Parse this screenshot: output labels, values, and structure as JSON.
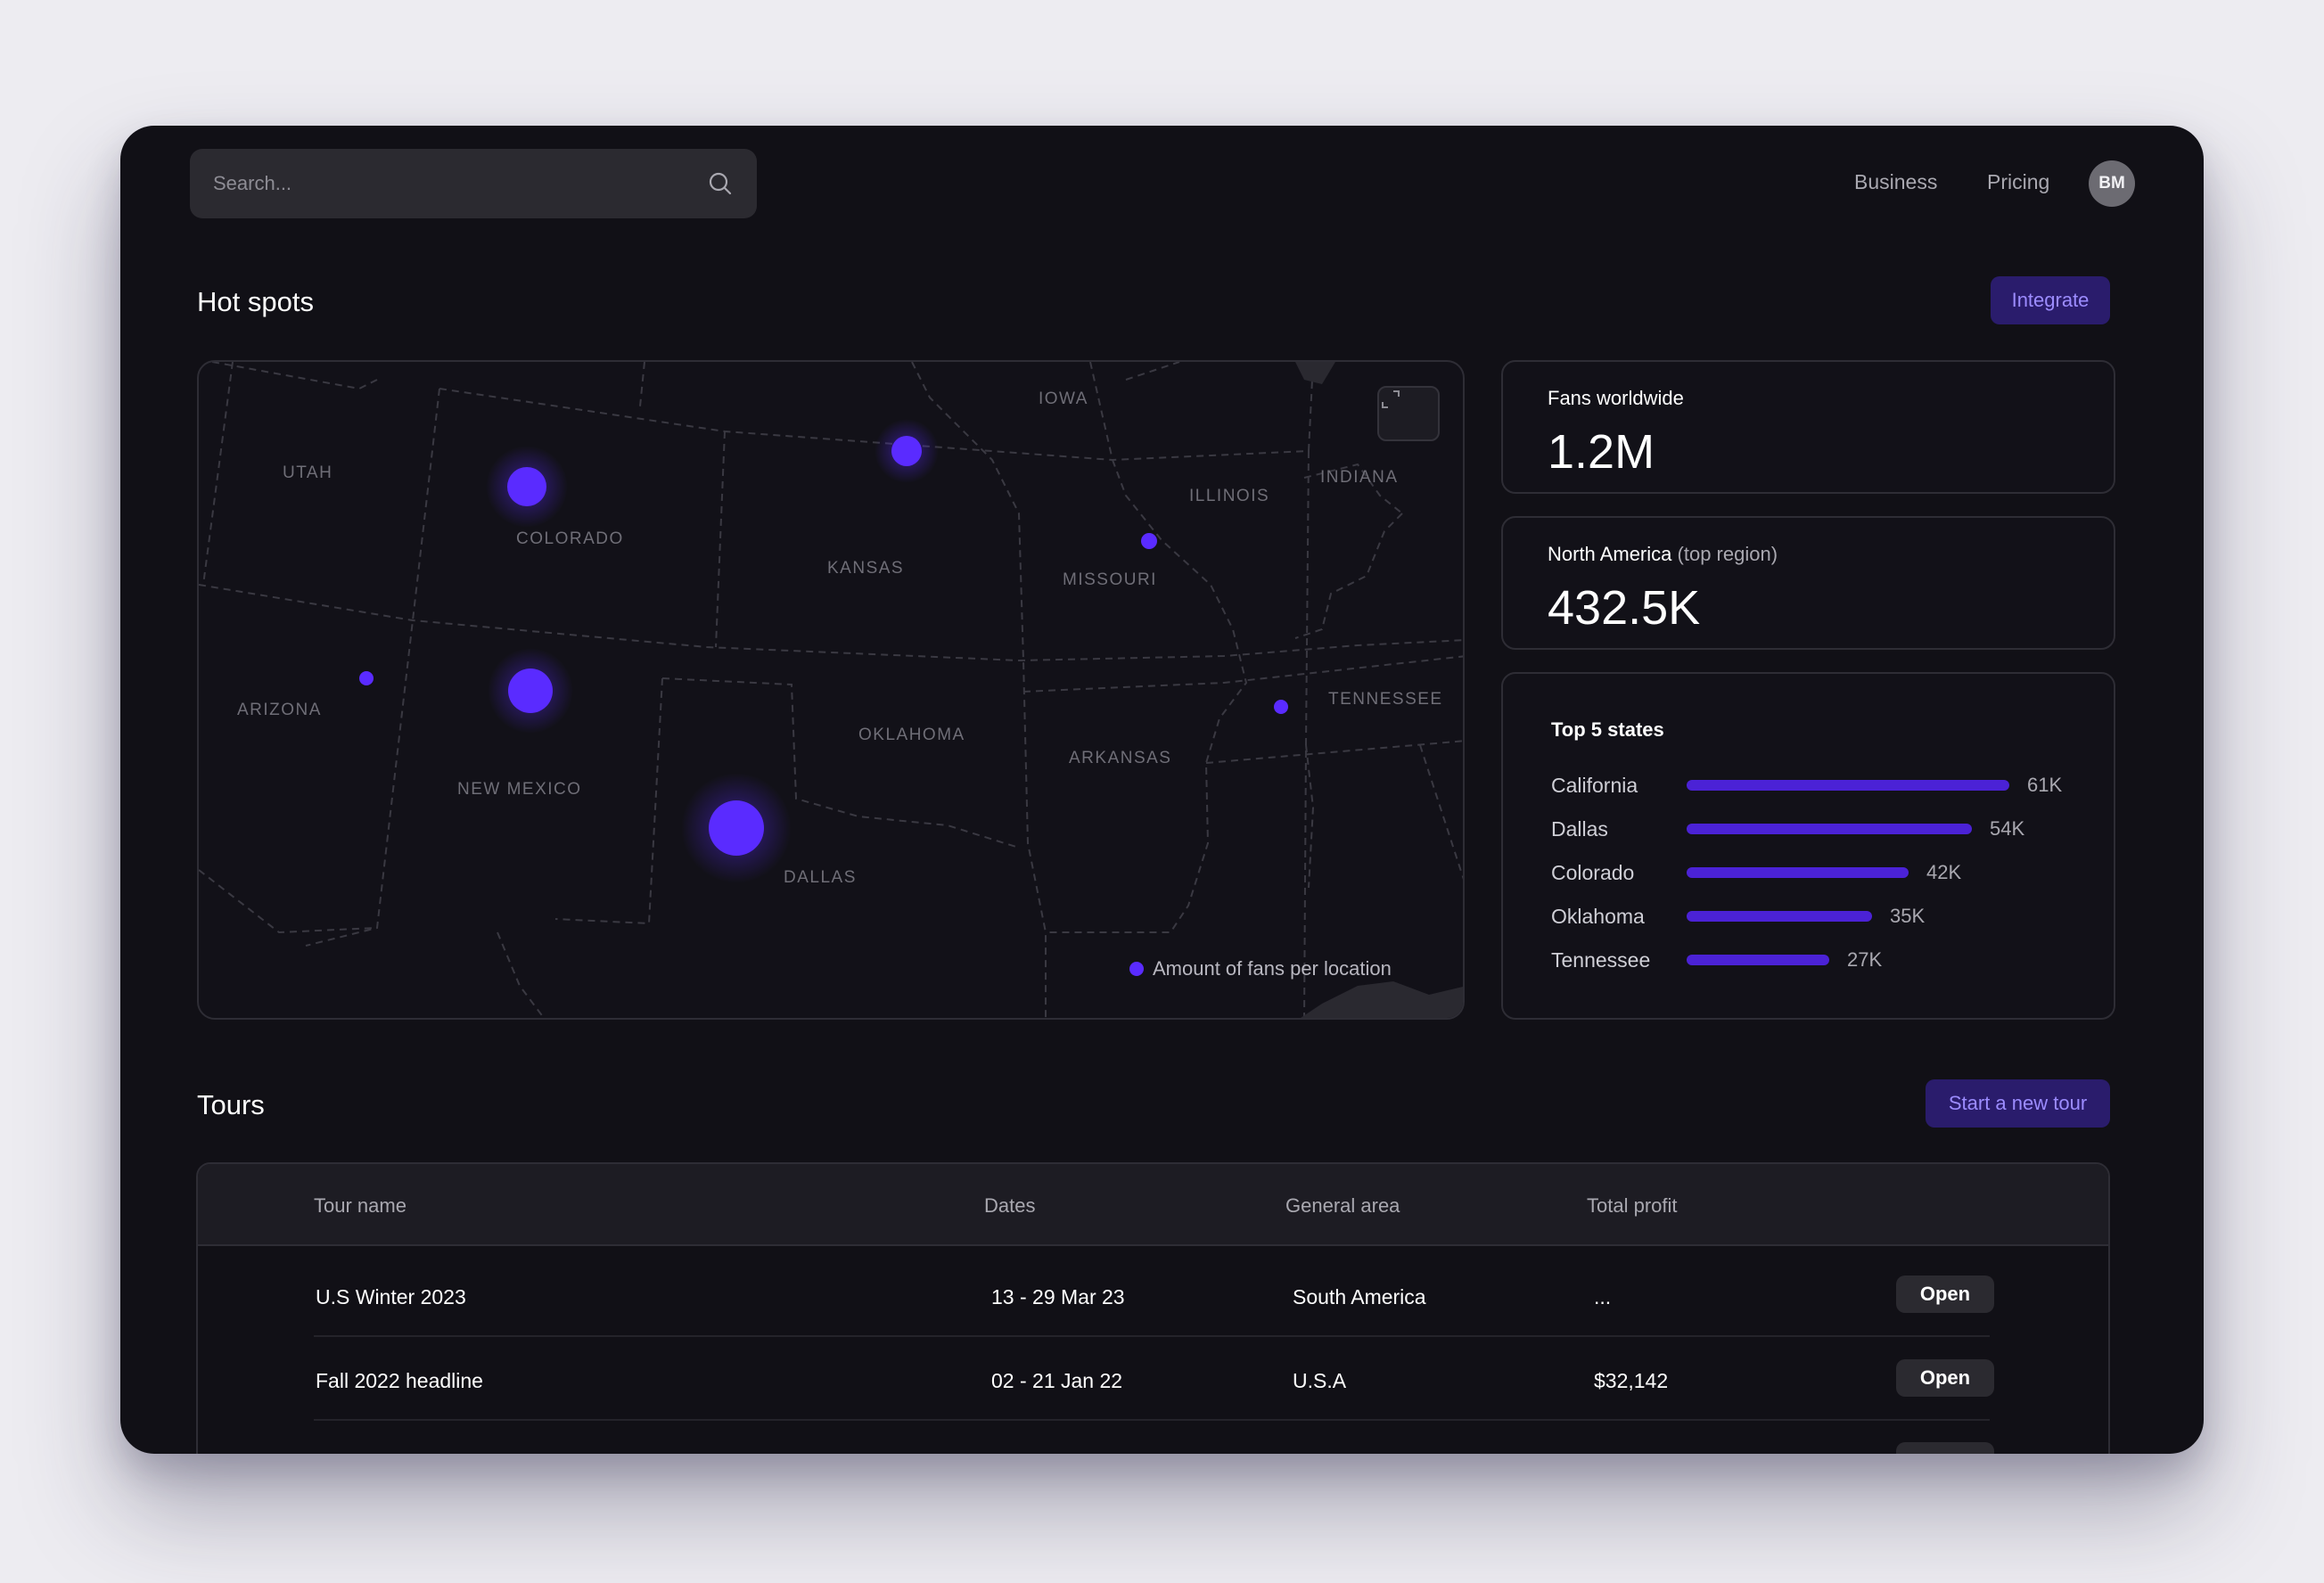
{
  "search": {
    "placeholder": "Search..."
  },
  "nav": {
    "business": "Business",
    "pricing": "Pricing",
    "avatar_initials": "BM"
  },
  "hot_spots": {
    "title": "Hot spots",
    "integrate_label": "Integrate",
    "map": {
      "state_labels": [
        "UTAH",
        "COLORADO",
        "KANSAS",
        "IOWA",
        "ILLINOIS",
        "INDIANA",
        "MISSOURI",
        "ARIZONA",
        "NEW MEXICO",
        "OKLAHOMA",
        "ARKANSAS",
        "TENNESSEE",
        "DALLAS"
      ],
      "legend": "Amount of fans per location",
      "accent_color": "#5a2bff"
    }
  },
  "stats": {
    "fans_worldwide": {
      "label": "Fans worldwide",
      "value": "1.2M"
    },
    "top_region": {
      "label": "North America",
      "label_suffix": "(top region)",
      "value": "432.5K"
    },
    "top_states": {
      "title": "Top 5 states",
      "items": [
        {
          "name": "California",
          "value": "61K",
          "amount": 61
        },
        {
          "name": "Dallas",
          "value": "54K",
          "amount": 54
        },
        {
          "name": "Colorado",
          "value": "42K",
          "amount": 42
        },
        {
          "name": "Oklahoma",
          "value": "35K",
          "amount": 35
        },
        {
          "name": "Tennessee",
          "value": "27K",
          "amount": 27
        }
      ]
    }
  },
  "tours": {
    "title": "Tours",
    "new_tour_label": "Start a new tour",
    "columns": [
      "Tour name",
      "Dates",
      "General area",
      "Total profit"
    ],
    "rows": [
      {
        "name": "U.S Winter 2023",
        "dates": "13 - 29 Mar 23",
        "area": "South America",
        "profit": "...",
        "action": "Open"
      },
      {
        "name": "Fall 2022 headline",
        "dates": "02 - 21 Jan 22",
        "area": "U.S.A",
        "profit": "$32,142",
        "action": "Open"
      }
    ]
  }
}
